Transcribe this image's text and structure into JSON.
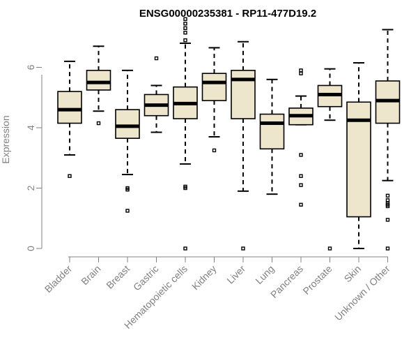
{
  "chart_data": {
    "type": "boxplot",
    "title": "ENSG00000235381 - RP11-477D19.2",
    "xlabel": "",
    "ylabel": "Expression",
    "ylim": [
      0,
      7.7
    ],
    "yticks": [
      0,
      2,
      4,
      6
    ],
    "grid": false,
    "box_color": "#ede6cd",
    "axis_color": "#808080",
    "categories": [
      "Bladder",
      "Brain",
      "Breast",
      "Gastric",
      "Hematopoietic cells",
      "Kidney",
      "Liver",
      "Lung",
      "Pancreas",
      "Prostate",
      "Skin",
      "Unknown / Other"
    ],
    "boxes": [
      {
        "category": "Bladder",
        "whisker_low": 3.1,
        "q1": 4.15,
        "median": 4.6,
        "q3": 5.2,
        "whisker_high": 6.2,
        "outliers": [
          2.4
        ]
      },
      {
        "category": "Brain",
        "whisker_low": 4.55,
        "q1": 5.25,
        "median": 5.5,
        "q3": 5.9,
        "whisker_high": 6.7,
        "outliers": [
          4.15
        ]
      },
      {
        "category": "Breast",
        "whisker_low": 2.45,
        "q1": 3.65,
        "median": 4.05,
        "q3": 4.6,
        "whisker_high": 5.9,
        "outliers": [
          2.0,
          1.95,
          1.25
        ]
      },
      {
        "category": "Gastric",
        "whisker_low": 3.85,
        "q1": 4.4,
        "median": 4.75,
        "q3": 5.1,
        "whisker_high": 5.4,
        "outliers": [
          6.3
        ]
      },
      {
        "category": "Hematopoietic cells",
        "whisker_low": 2.8,
        "q1": 4.3,
        "median": 4.8,
        "q3": 5.35,
        "whisker_high": 6.8,
        "outliers": [
          7.6,
          7.45,
          7.3,
          7.15,
          6.9,
          2.05,
          2.0,
          0.0
        ]
      },
      {
        "category": "Kidney",
        "whisker_low": 3.7,
        "q1": 4.9,
        "median": 5.5,
        "q3": 5.8,
        "whisker_high": 6.65,
        "outliers": [
          3.25
        ]
      },
      {
        "category": "Liver",
        "whisker_low": 1.9,
        "q1": 4.3,
        "median": 5.6,
        "q3": 5.9,
        "whisker_high": 6.85,
        "outliers": [
          0.0
        ]
      },
      {
        "category": "Lung",
        "whisker_low": 1.8,
        "q1": 3.3,
        "median": 4.15,
        "q3": 4.45,
        "whisker_high": 5.6,
        "outliers": []
      },
      {
        "category": "Pancreas",
        "whisker_low": 4.1,
        "q1": 4.1,
        "median": 4.4,
        "q3": 4.65,
        "whisker_high": 5.05,
        "outliers": [
          5.9,
          5.8,
          3.1,
          2.4,
          2.1,
          1.45
        ]
      },
      {
        "category": "Prostate",
        "whisker_low": 4.25,
        "q1": 4.7,
        "median": 5.1,
        "q3": 5.4,
        "whisker_high": 5.95,
        "outliers": [
          0.0
        ]
      },
      {
        "category": "Skin",
        "whisker_low": 0.0,
        "q1": 1.05,
        "median": 4.25,
        "q3": 4.85,
        "whisker_high": 6.15,
        "outliers": []
      },
      {
        "category": "Unknown / Other",
        "whisker_low": 2.25,
        "q1": 4.15,
        "median": 4.9,
        "q3": 5.55,
        "whisker_high": 7.25,
        "outliers": [
          1.75,
          1.6,
          1.5,
          1.45,
          1.4,
          0.95,
          0.0
        ]
      }
    ]
  }
}
